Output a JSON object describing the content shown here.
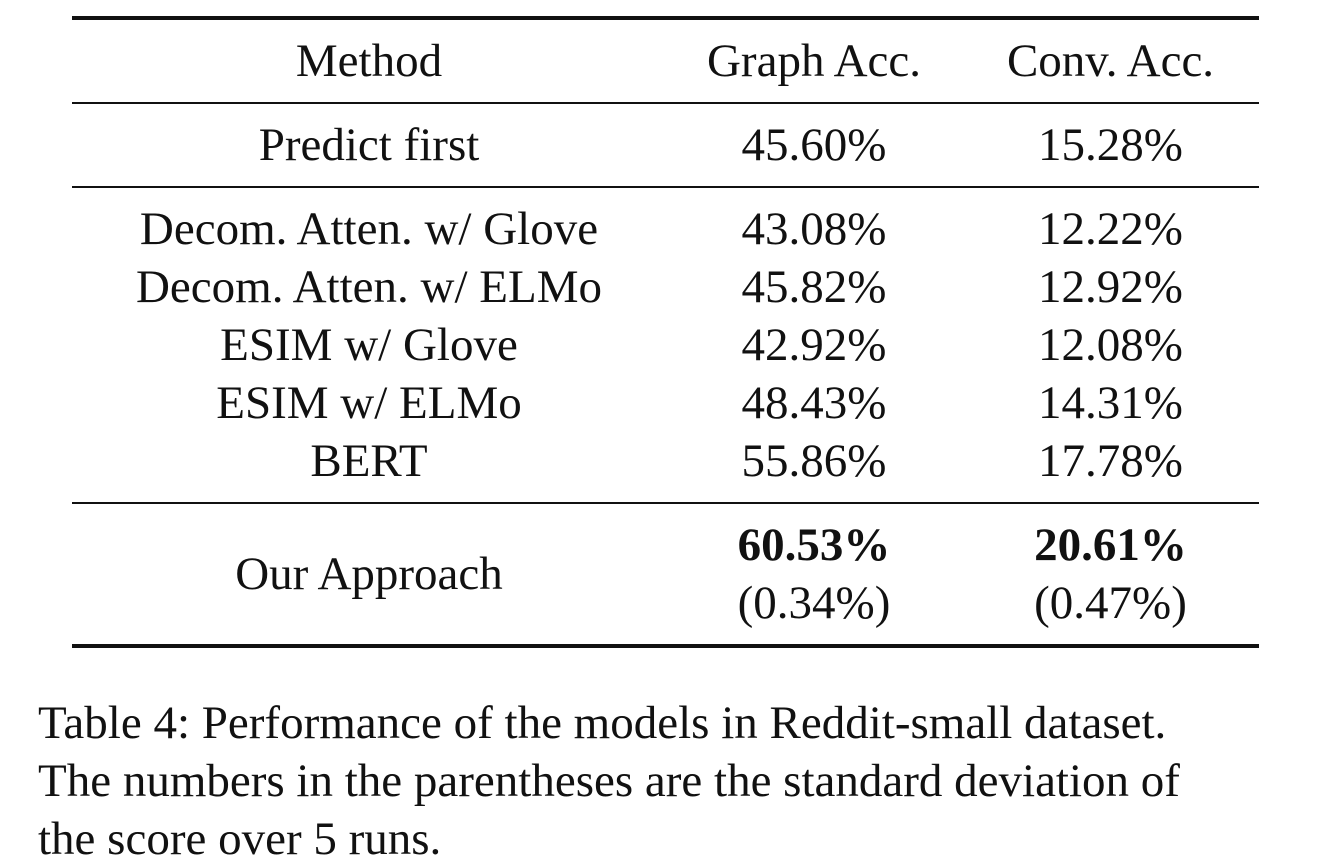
{
  "table": {
    "headers": [
      "Method",
      "Graph Acc.",
      "Conv. Acc."
    ],
    "baseline": {
      "method": "Predict first",
      "graph_acc": "45.60%",
      "conv_acc": "15.28%"
    },
    "models": [
      {
        "method": "Decom. Atten. w/ Glove",
        "graph_acc": "43.08%",
        "conv_acc": "12.22%"
      },
      {
        "method": "Decom. Atten. w/ ELMo",
        "graph_acc": "45.82%",
        "conv_acc": "12.92%"
      },
      {
        "method": "ESIM w/ Glove",
        "graph_acc": "42.92%",
        "conv_acc": "12.08%"
      },
      {
        "method": "ESIM w/ ELMo",
        "graph_acc": "48.43%",
        "conv_acc": "14.31%"
      },
      {
        "method": "BERT",
        "graph_acc": "55.86%",
        "conv_acc": "17.78%"
      }
    ],
    "ours": {
      "method": "Our Approach",
      "graph_acc": "60.53%",
      "graph_std": "(0.34%)",
      "conv_acc": "20.61%",
      "conv_std": "(0.47%)"
    }
  },
  "caption": {
    "lines": [
      "Table 4: Performance of the models in Reddit-small dataset.",
      "The numbers in the parentheses are the standard deviation of",
      "the score over 5 runs."
    ]
  }
}
